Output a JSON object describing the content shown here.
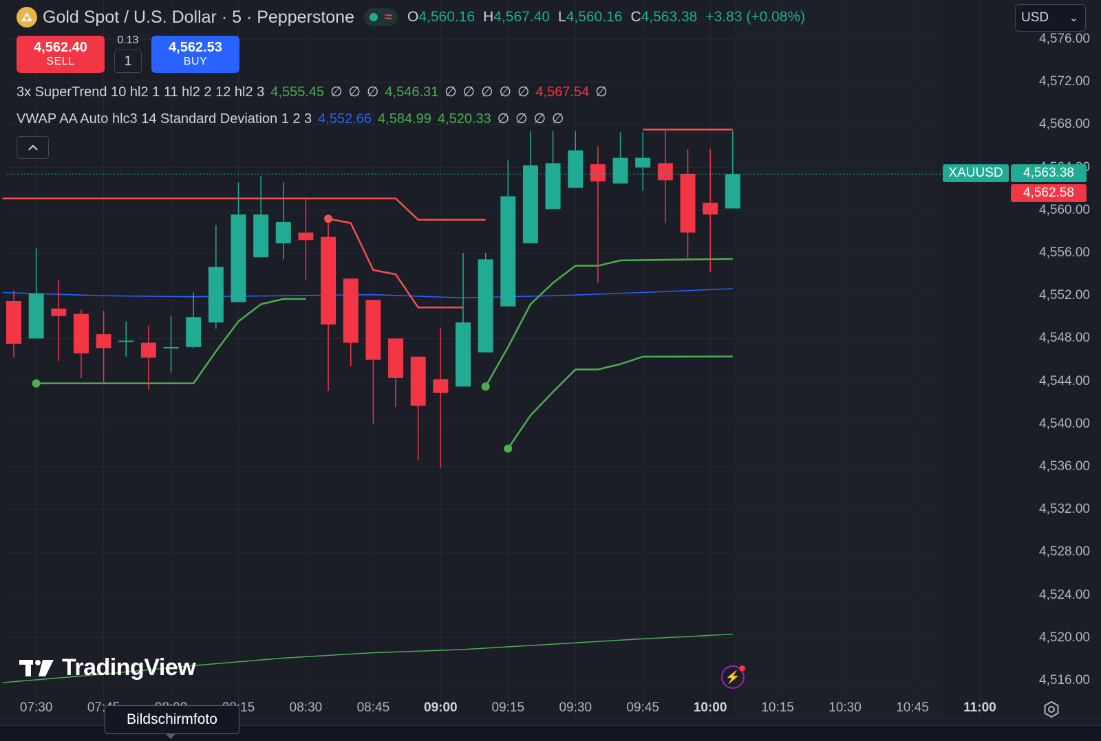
{
  "header": {
    "symbol_title": "Gold Spot / U.S. Dollar · 5 · Pepperstone",
    "logo_icon": "gold-bars-icon",
    "status_wave": "≈",
    "ohlc": {
      "o_label": "O",
      "o_value": "4,560.16",
      "h_label": "H",
      "h_value": "4,567.40",
      "l_label": "L",
      "l_value": "4,560.16",
      "c_label": "C",
      "c_value": "4,563.38",
      "change": "+3.83 (+0.08%)"
    },
    "currency": "USD"
  },
  "trade": {
    "sell_price": "4,562.40",
    "sell_label": "SELL",
    "buy_price": "4,562.53",
    "buy_label": "BUY",
    "spread": "0.13",
    "quantity": "1"
  },
  "indicators": {
    "supertrend": {
      "title": "3x SuperTrend 10 hl2 1 11 hl2 2 12 hl2 3",
      "v1": "4,555.45",
      "v2": "4,546.31",
      "v3": "4,567.54",
      "null_symbol": "∅"
    },
    "vwap": {
      "title": "VWAP AA Auto hlc3 14 Standard Deviation 1 2 3",
      "v1": "4,552.66",
      "v2": "4,584.99",
      "v3": "4,520.33",
      "null_symbol": "∅"
    }
  },
  "price_axis": {
    "labels": [
      "4,576.00",
      "4,572.00",
      "4,568.00",
      "4,564.00",
      "4,560.00",
      "4,556.00",
      "4,552.00",
      "4,548.00",
      "4,544.00",
      "4,540.00",
      "4,536.00",
      "4,532.00",
      "4,528.00",
      "4,524.00",
      "4,520.00",
      "4,516.00"
    ],
    "symbol_tag": "XAUUSD",
    "last_price": "4,563.38",
    "bid_price": "4,562.58"
  },
  "time_axis": {
    "labels": [
      "07:30",
      "07:45",
      "08:00",
      "08:15",
      "08:30",
      "08:45",
      "09:00",
      "09:15",
      "09:30",
      "09:45",
      "10:00",
      "10:15",
      "10:30",
      "10:45",
      "11:00"
    ],
    "bold": [
      "09:00",
      "10:00",
      "11:00"
    ]
  },
  "watermark": "TradingView",
  "tooltip": "Bildschirmfoto",
  "colors": {
    "up": "#22ab94",
    "down": "#f23645",
    "supertrend_up": "#4caf50",
    "supertrend_down": "#f5514f",
    "vwap": "#2962ff",
    "background": "#1b1e26"
  },
  "chart_data": {
    "type": "candlestick",
    "timeframe": "5",
    "y_range": [
      4515,
      4577
    ],
    "candles": [
      {
        "o": 4551.5,
        "h": 4552.5,
        "l": 4546.2,
        "c": 4547.5
      },
      {
        "o": 4548.0,
        "h": 4556.5,
        "l": 4548.0,
        "c": 4552.2
      },
      {
        "o": 4550.8,
        "h": 4553.5,
        "l": 4545.9,
        "c": 4550.1
      },
      {
        "o": 4550.3,
        "h": 4550.7,
        "l": 4544.3,
        "c": 4546.6
      },
      {
        "o": 4548.4,
        "h": 4550.6,
        "l": 4543.8,
        "c": 4547.1
      },
      {
        "o": 4547.8,
        "h": 4549.6,
        "l": 4546.3,
        "c": 4547.8
      },
      {
        "o": 4547.6,
        "h": 4549.2,
        "l": 4543.2,
        "c": 4546.2
      },
      {
        "o": 4547.2,
        "h": 4550.1,
        "l": 4544.8,
        "c": 4547.2
      },
      {
        "o": 4547.2,
        "h": 4552.3,
        "l": 4547.1,
        "c": 4550.0
      },
      {
        "o": 4549.5,
        "h": 4558.6,
        "l": 4548.9,
        "c": 4554.7
      },
      {
        "o": 4551.4,
        "h": 4562.6,
        "l": 4551.4,
        "c": 4559.6
      },
      {
        "o": 4555.6,
        "h": 4563.2,
        "l": 4555.6,
        "c": 4559.6
      },
      {
        "o": 4556.9,
        "h": 4562.6,
        "l": 4555.4,
        "c": 4558.9
      },
      {
        "o": 4557.9,
        "h": 4561.2,
        "l": 4553.5,
        "c": 4557.2
      },
      {
        "o": 4557.5,
        "h": 4558.8,
        "l": 4543.1,
        "c": 4549.3
      },
      {
        "o": 4553.6,
        "h": 4553.6,
        "l": 4545.4,
        "c": 4547.6
      },
      {
        "o": 4551.6,
        "h": 4551.6,
        "l": 4540.0,
        "c": 4546.0
      },
      {
        "o": 4548.0,
        "h": 4548.0,
        "l": 4541.6,
        "c": 4544.3
      },
      {
        "o": 4546.3,
        "h": 4546.3,
        "l": 4536.6,
        "c": 4541.7
      },
      {
        "o": 4544.2,
        "h": 4549.0,
        "l": 4535.9,
        "c": 4542.9
      },
      {
        "o": 4543.5,
        "h": 4556.0,
        "l": 4543.5,
        "c": 4549.5
      },
      {
        "o": 4546.7,
        "h": 4556.0,
        "l": 4546.7,
        "c": 4555.4
      },
      {
        "o": 4551.0,
        "h": 4564.7,
        "l": 4551.0,
        "c": 4561.3
      },
      {
        "o": 4556.9,
        "h": 4567.4,
        "l": 4556.9,
        "c": 4564.2
      },
      {
        "o": 4560.1,
        "h": 4567.4,
        "l": 4560.1,
        "c": 4564.4
      },
      {
        "o": 4562.1,
        "h": 4567.4,
        "l": 4562.1,
        "c": 4565.6
      },
      {
        "o": 4564.3,
        "h": 4566.0,
        "l": 4553.2,
        "c": 4562.7
      },
      {
        "o": 4562.5,
        "h": 4567.3,
        "l": 4562.5,
        "c": 4564.9
      },
      {
        "o": 4564.0,
        "h": 4567.3,
        "l": 4561.8,
        "c": 4564.9
      },
      {
        "o": 4564.4,
        "h": 4567.6,
        "l": 4558.8,
        "c": 4562.8
      },
      {
        "o": 4563.4,
        "h": 4565.7,
        "l": 4555.3,
        "c": 4557.9
      },
      {
        "o": 4560.7,
        "h": 4565.7,
        "l": 4554.2,
        "c": 4559.6
      },
      {
        "o": 4560.16,
        "h": 4567.4,
        "l": 4560.16,
        "c": 4563.38
      }
    ],
    "supertrend_red_1": [
      [
        -0.5,
        4561.1
      ],
      [
        17,
        4561.1
      ],
      [
        18,
        4559.1
      ],
      [
        21,
        4559.1
      ]
    ],
    "supertrend_red_2": [
      [
        14,
        4559.2
      ],
      [
        15,
        4558.8
      ],
      [
        16,
        4554.4
      ],
      [
        17,
        4554.0
      ],
      [
        18,
        4550.9
      ],
      [
        20,
        4550.9
      ]
    ],
    "supertrend_red_3": [
      [
        28,
        4567.54
      ],
      [
        32,
        4567.54
      ]
    ],
    "supertrend_green_1": [
      [
        1,
        4543.8
      ],
      [
        8,
        4543.8
      ],
      [
        9,
        4546.8
      ],
      [
        10,
        4549.6
      ],
      [
        11,
        4551.2
      ],
      [
        12,
        4551.7
      ],
      [
        13,
        4551.7
      ]
    ],
    "supertrend_green_2": [
      [
        21,
        4543.5
      ],
      [
        22,
        4547.2
      ],
      [
        23,
        4551.2
      ],
      [
        24,
        4553.2
      ],
      [
        25,
        4554.8
      ],
      [
        26,
        4554.8
      ],
      [
        27,
        4555.3
      ],
      [
        32,
        4555.45
      ]
    ],
    "supertrend_green_3": [
      [
        22,
        4537.7
      ],
      [
        23,
        4540.8
      ],
      [
        24,
        4543.0
      ],
      [
        25,
        4545.1
      ],
      [
        26,
        4545.1
      ],
      [
        27,
        4545.6
      ],
      [
        28,
        4546.3
      ],
      [
        32,
        4546.31
      ]
    ],
    "vwap": [
      [
        -0.5,
        4552.3
      ],
      [
        4,
        4552.0
      ],
      [
        8,
        4551.9
      ],
      [
        12,
        4552.0
      ],
      [
        16,
        4552.1
      ],
      [
        20,
        4551.8
      ],
      [
        24,
        4552.0
      ],
      [
        28,
        4552.3
      ],
      [
        32,
        4552.66
      ]
    ],
    "vwap_lower_band": [
      [
        -0.5,
        4515.8
      ],
      [
        4,
        4516.6
      ],
      [
        8,
        4517.4
      ],
      [
        12,
        4518.1
      ],
      [
        16,
        4518.6
      ],
      [
        20,
        4518.9
      ],
      [
        24,
        4519.4
      ],
      [
        28,
        4519.9
      ],
      [
        32,
        4520.33
      ]
    ]
  }
}
